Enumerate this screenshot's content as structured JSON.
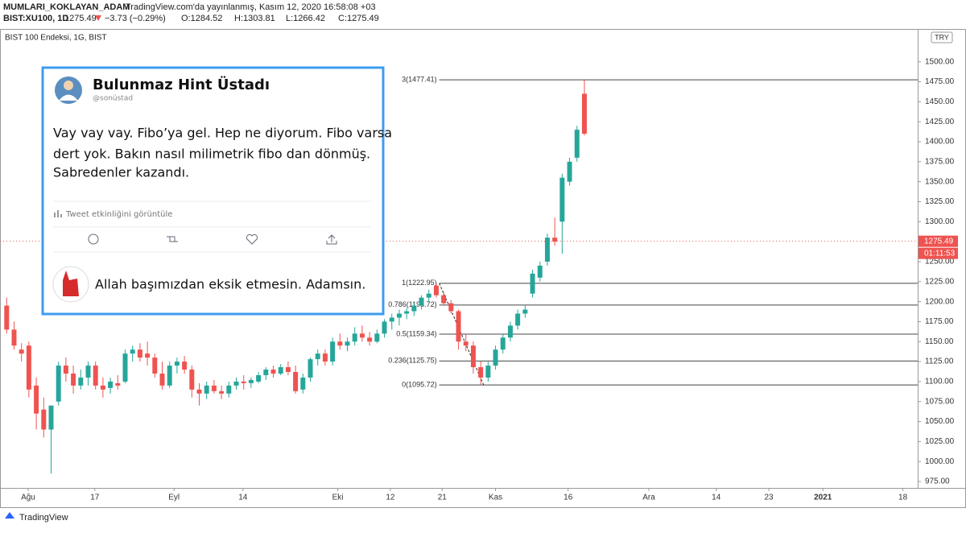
{
  "header": {
    "publisher": "MUMLARI_KOKLAYAN_ADAM",
    "published": "TradingView.com'da yayınlanmış, Kasım 12, 2020 16:58:08 +03",
    "symbol": "BIST:XU100, 1D",
    "last": "1275.49",
    "change": "−3.73 (−0.29%)",
    "open": "O:1284.52",
    "high": "H:1303.81",
    "low": "L:1266.42",
    "close": "C:1275.49"
  },
  "tweet": {
    "name": "Bulunmaz Hint Üstadı",
    "handle": "@sonüstad",
    "lines": [
      "Vay vay vay. Fibo’ya gel. Hep ne diyorum. Fibo varsa",
      "dert yok. Bakın nasıl milimetrik fibo dan dönmüş.",
      "Sabredenler kazandı."
    ],
    "activity": "Tweet etkinliğini görüntüle",
    "reply": "Allah başımızdan eksik etmesin. Adamsın."
  },
  "footer": {
    "brand": "TradingView"
  },
  "chart_data": {
    "type": "candlestick",
    "title": "BIST 100 Endeksi, 1G, BIST",
    "currency": "TRY",
    "up_color": "#26a69a",
    "down_color": "#ef5350",
    "candles": [
      [
        1195,
        1205,
        1160,
        1165
      ],
      [
        1165,
        1175,
        1140,
        1145
      ],
      [
        1140,
        1148,
        1125,
        1135
      ],
      [
        1145,
        1150,
        1080,
        1090
      ],
      [
        1095,
        1105,
        1040,
        1060
      ],
      [
        1065,
        1080,
        1030,
        1040
      ],
      [
        1040,
        1070,
        985,
        1070
      ],
      [
        1075,
        1125,
        1070,
        1120
      ],
      [
        1120,
        1130,
        1100,
        1110
      ],
      [
        1110,
        1120,
        1085,
        1095
      ],
      [
        1095,
        1115,
        1090,
        1105
      ],
      [
        1105,
        1125,
        1095,
        1120
      ],
      [
        1120,
        1125,
        1090,
        1095
      ],
      [
        1095,
        1105,
        1080,
        1090
      ],
      [
        1092,
        1105,
        1085,
        1100
      ],
      [
        1098,
        1108,
        1090,
        1095
      ],
      [
        1100,
        1140,
        1098,
        1135
      ],
      [
        1135,
        1145,
        1125,
        1140
      ],
      [
        1140,
        1148,
        1125,
        1130
      ],
      [
        1135,
        1150,
        1120,
        1130
      ],
      [
        1130,
        1135,
        1105,
        1110
      ],
      [
        1110,
        1125,
        1090,
        1095
      ],
      [
        1095,
        1125,
        1092,
        1120
      ],
      [
        1120,
        1130,
        1110,
        1125
      ],
      [
        1125,
        1132,
        1110,
        1115
      ],
      [
        1115,
        1120,
        1080,
        1090
      ],
      [
        1090,
        1098,
        1070,
        1085
      ],
      [
        1085,
        1100,
        1078,
        1095
      ],
      [
        1095,
        1102,
        1085,
        1088
      ],
      [
        1088,
        1095,
        1078,
        1085
      ],
      [
        1085,
        1100,
        1080,
        1095
      ],
      [
        1095,
        1105,
        1090,
        1100
      ],
      [
        1100,
        1108,
        1090,
        1098
      ],
      [
        1098,
        1105,
        1092,
        1102
      ],
      [
        1100,
        1112,
        1098,
        1108
      ],
      [
        1108,
        1118,
        1102,
        1115
      ],
      [
        1115,
        1120,
        1105,
        1110
      ],
      [
        1110,
        1122,
        1108,
        1118
      ],
      [
        1118,
        1125,
        1108,
        1112
      ],
      [
        1112,
        1120,
        1085,
        1088
      ],
      [
        1090,
        1110,
        1085,
        1105
      ],
      [
        1105,
        1130,
        1100,
        1128
      ],
      [
        1128,
        1140,
        1120,
        1135
      ],
      [
        1135,
        1140,
        1120,
        1125
      ],
      [
        1125,
        1155,
        1120,
        1150
      ],
      [
        1150,
        1160,
        1140,
        1145
      ],
      [
        1145,
        1155,
        1138,
        1150
      ],
      [
        1150,
        1168,
        1145,
        1160
      ],
      [
        1160,
        1170,
        1150,
        1155
      ],
      [
        1155,
        1162,
        1145,
        1150
      ],
      [
        1150,
        1165,
        1148,
        1160
      ],
      [
        1160,
        1178,
        1155,
        1175
      ],
      [
        1175,
        1185,
        1165,
        1180
      ],
      [
        1180,
        1190,
        1170,
        1185
      ],
      [
        1185,
        1192,
        1178,
        1188
      ],
      [
        1188,
        1200,
        1182,
        1195
      ],
      [
        1195,
        1208,
        1190,
        1205
      ],
      [
        1205,
        1215,
        1200,
        1210
      ],
      [
        1220,
        1223,
        1205,
        1208
      ],
      [
        1208,
        1212,
        1195,
        1198
      ],
      [
        1198,
        1202,
        1185,
        1188
      ],
      [
        1188,
        1190,
        1140,
        1150
      ],
      [
        1150,
        1160,
        1138,
        1145
      ],
      [
        1145,
        1150,
        1110,
        1118
      ],
      [
        1118,
        1125,
        1096,
        1105
      ],
      [
        1105,
        1125,
        1100,
        1120
      ],
      [
        1120,
        1145,
        1115,
        1140
      ],
      [
        1140,
        1160,
        1135,
        1155
      ],
      [
        1155,
        1175,
        1150,
        1170
      ],
      [
        1170,
        1190,
        1165,
        1185
      ],
      [
        1185,
        1195,
        1180,
        1190
      ],
      [
        1210,
        1240,
        1205,
        1235
      ],
      [
        1230,
        1250,
        1225,
        1245
      ],
      [
        1250,
        1285,
        1245,
        1280
      ],
      [
        1280,
        1305,
        1270,
        1275
      ],
      [
        1300,
        1360,
        1260,
        1355
      ],
      [
        1350,
        1380,
        1345,
        1375
      ],
      [
        1380,
        1420,
        1375,
        1415
      ],
      [
        1460,
        1477,
        1408,
        1410
      ]
    ],
    "xlim": [
      -0.9,
      123
    ],
    "xticks": [
      {
        "value": 2.9,
        "label": "Ağu"
      },
      {
        "value": 11.9,
        "label": "17"
      },
      {
        "value": 22.6,
        "label": "Eyl"
      },
      {
        "value": 31.9,
        "label": "14"
      },
      {
        "value": 44.7,
        "label": "Eki"
      },
      {
        "value": 51.8,
        "label": "12"
      },
      {
        "value": 58.8,
        "label": "21"
      },
      {
        "value": 66,
        "label": "Kas"
      },
      {
        "value": 75.8,
        "label": "16"
      },
      {
        "value": 86.7,
        "label": "Ara"
      },
      {
        "value": 95.8,
        "label": "14"
      },
      {
        "value": 102.9,
        "label": "23"
      },
      {
        "value": 110.2,
        "label": "2021"
      },
      {
        "value": 121,
        "label": "18"
      }
    ],
    "ylim": [
      969,
      1539
    ],
    "yticks": [
      {
        "value": 975,
        "label": "975.00"
      },
      {
        "value": 1000,
        "label": "1000.00"
      },
      {
        "value": 1025,
        "label": "1025.00"
      },
      {
        "value": 1050,
        "label": "1050.00"
      },
      {
        "value": 1075,
        "label": "1075.00"
      },
      {
        "value": 1100,
        "label": "1100.00"
      },
      {
        "value": 1125,
        "label": "1125.00"
      },
      {
        "value": 1150,
        "label": "1150.00"
      },
      {
        "value": 1175,
        "label": "1175.00"
      },
      {
        "value": 1200,
        "label": "1200.00"
      },
      {
        "value": 1225,
        "label": "1225.00"
      },
      {
        "value": 1250,
        "label": "1250.00"
      },
      {
        "value": 1275,
        "label": "1275.00"
      },
      {
        "value": 1300,
        "label": "1300.00"
      },
      {
        "value": 1325,
        "label": "1325.00"
      },
      {
        "value": 1350,
        "label": "1350.00"
      },
      {
        "value": 1375,
        "label": "1375.00"
      },
      {
        "value": 1400,
        "label": "1400.00"
      },
      {
        "value": 1425,
        "label": "1425.00"
      },
      {
        "value": 1450,
        "label": "1450.00"
      },
      {
        "value": 1475,
        "label": "1475.00"
      },
      {
        "value": 1500,
        "label": "1500.00"
      }
    ],
    "fib_start": 58.4,
    "fib_levels": [
      {
        "value": 1477.41,
        "label": "3(1477.41)"
      },
      {
        "value": 1222.95,
        "label": "1(1222.95)"
      },
      {
        "value": 1195.72,
        "label": "0.786(1195.72)"
      },
      {
        "value": 1159.34,
        "label": "0.5(1159.34)"
      },
      {
        "value": 1125.75,
        "label": "0.236(1125.75)"
      },
      {
        "value": 1095.72,
        "label": "0(1095.72)"
      }
    ],
    "fib_trend_end": 64.4,
    "last_price": 1275.49,
    "countdown": "01:11:53"
  }
}
